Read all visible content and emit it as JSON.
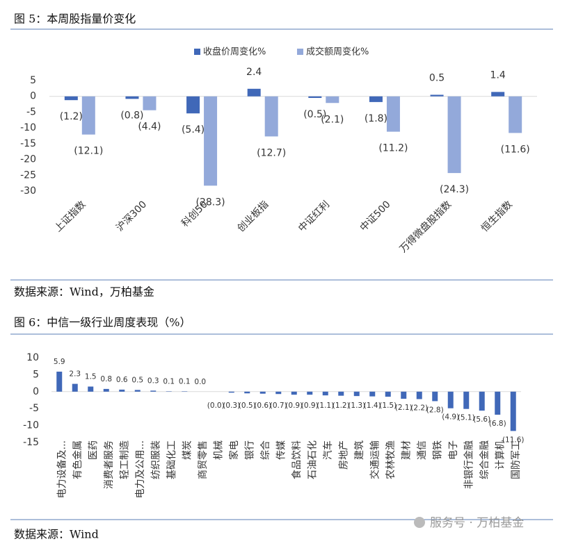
{
  "figures": [
    {
      "title": "图 5：本周股指量价变化",
      "source": "数据来源：Wind，万柏基金"
    },
    {
      "title": "图 6：中信一级行业周度表现（%）",
      "source": "数据来源：Wind"
    }
  ],
  "watermark": "服务号 · 万柏基金",
  "chart_data": [
    {
      "type": "bar",
      "legend": "top",
      "grid": false,
      "negative_label_color": "#e00000",
      "categories": [
        "上证指数",
        "沪深300",
        "科创50",
        "创业板指",
        "中证红利",
        "中证500",
        "万得微盘股指数",
        "恒生指数"
      ],
      "series": [
        {
          "name": "收盘价周变化%",
          "color": "#4068b8",
          "values": [
            -1.2,
            -0.8,
            -5.4,
            2.4,
            -0.5,
            -1.8,
            0.5,
            1.4
          ],
          "value_labels": [
            "(1.2)",
            "(0.8)",
            "(5.4)",
            "2.4",
            "(0.5)",
            "(1.8)",
            "0.5",
            "1.4"
          ]
        },
        {
          "name": "成交额周变化%",
          "color": "#93a9da",
          "values": [
            -12.1,
            -4.4,
            -28.3,
            -12.7,
            -2.1,
            -11.2,
            -24.3,
            -11.6
          ],
          "value_labels": [
            "(12.1)",
            "(4.4)",
            "(28.3)",
            "(12.7)",
            "(2.1)",
            "(11.2)",
            "(24.3)",
            "(11.6)"
          ]
        }
      ],
      "ylim": [
        -30,
        5
      ],
      "yticks": [
        5,
        0,
        -5,
        -10,
        -15,
        -20,
        -25,
        -30
      ]
    },
    {
      "type": "bar",
      "grid": false,
      "negative_label_color": "#e00000",
      "color": "#4068b8",
      "categories": [
        "电力设备及...",
        "有色金属",
        "医药",
        "消费者服务",
        "轻工制造",
        "电力及公用...",
        "纺织服装",
        "基础化工",
        "煤炭",
        "商贸零售",
        "机械",
        "家电",
        "银行",
        "综合",
        "传媒",
        "食品饮料",
        "石油石化",
        "汽车",
        "房地产",
        "建筑",
        "交通运输",
        "农林牧渔",
        "建材",
        "通信",
        "钢铁",
        "电子",
        "非银行金融",
        "综合金融",
        "计算机",
        "国防军工"
      ],
      "values": [
        5.9,
        2.3,
        1.5,
        0.8,
        0.6,
        0.5,
        0.3,
        0.1,
        0.1,
        0.0,
        -0.0,
        -0.3,
        -0.5,
        -0.6,
        -0.7,
        -0.9,
        -0.9,
        -1.1,
        -1.2,
        -1.3,
        -1.4,
        -1.5,
        -2.1,
        -2.2,
        -2.8,
        -4.9,
        -5.1,
        -5.6,
        -6.8,
        -11.6
      ],
      "value_labels": [
        "5.9",
        "2.3",
        "1.5",
        "0.8",
        "0.6",
        "0.5",
        "0.3",
        "0.1",
        "0.1",
        "0.0",
        "(0.0)",
        "(0.3)",
        "(0.5)",
        "(0.6)",
        "(0.7)",
        "(0.9)",
        "(0.9)",
        "(1.1)",
        "(1.2)",
        "(1.3)",
        "(1.4)",
        "(1.5)",
        "(2.1)",
        "(2.2)",
        "(2.8)",
        "(4.9)",
        "(5.1)",
        "(5.6)",
        "(6.8)",
        "(11.6)"
      ],
      "ylim": [
        -15,
        10
      ],
      "yticks": [
        10,
        5,
        0,
        -5,
        -10,
        -15
      ]
    }
  ]
}
